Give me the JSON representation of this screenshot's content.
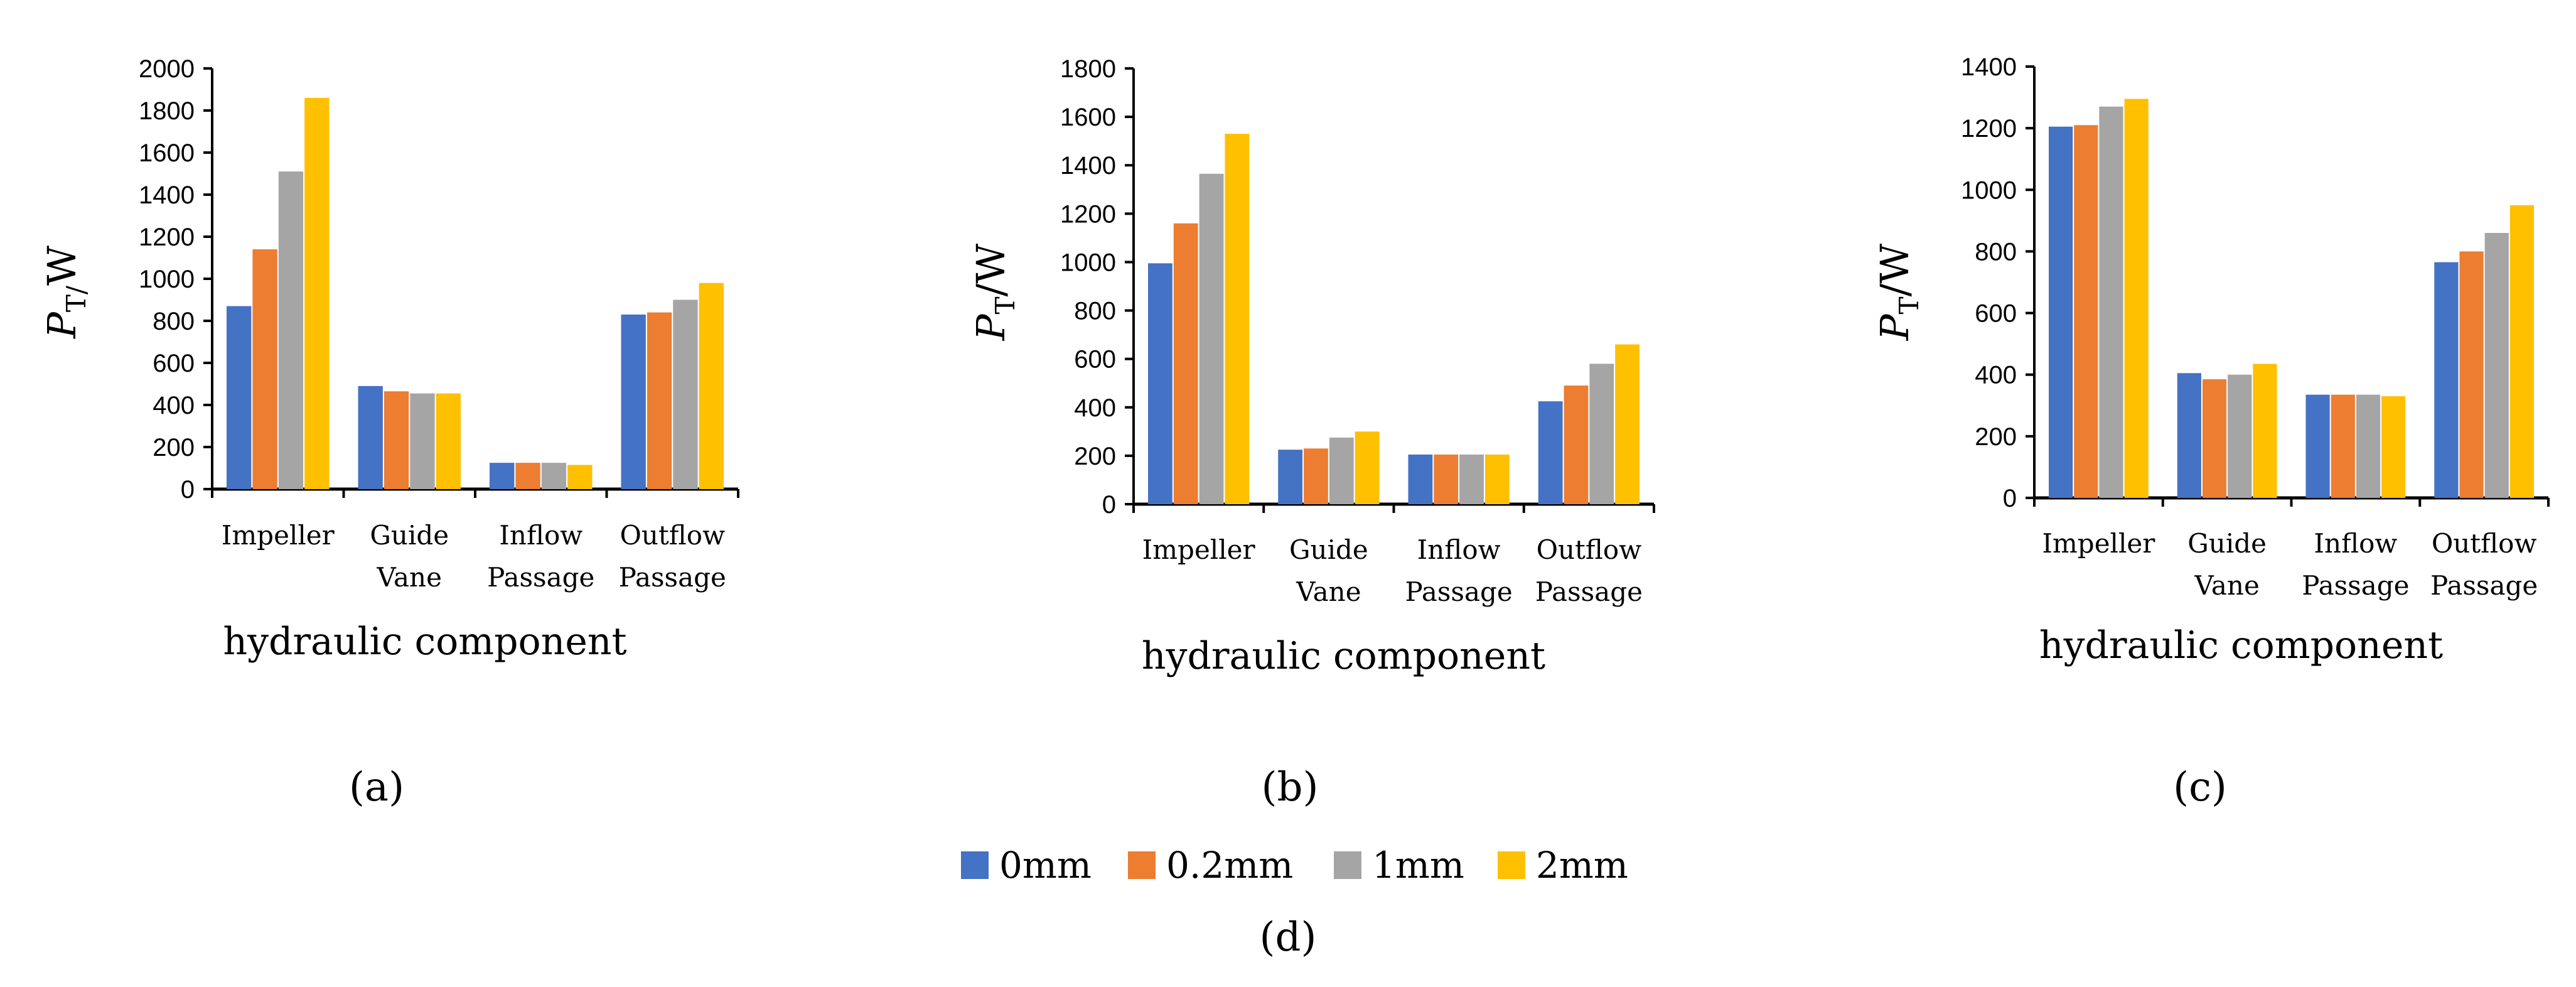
{
  "colors": {
    "series": [
      "#4472C4",
      "#ED7D31",
      "#A5A5A5",
      "#FFC000"
    ],
    "axis": "#000000"
  },
  "legend": {
    "items": [
      "0mm",
      "0.2mm",
      "1mm",
      "2mm"
    ],
    "panel_label": "(d)"
  },
  "chart_data": [
    {
      "type": "bar",
      "panel_label": "(a)",
      "ylabel": "P",
      "ylabel_sub": "T/",
      "ylabel_unit": "W",
      "xlabel": "hydraulic component",
      "ylim": [
        0,
        2000
      ],
      "yticks": [
        0,
        200,
        400,
        600,
        800,
        1000,
        1200,
        1400,
        1600,
        1800,
        2000
      ],
      "categories": [
        [
          "Impeller"
        ],
        [
          "Guide",
          "Vane"
        ],
        [
          "Inflow",
          "Passage"
        ],
        [
          "Outflow",
          "Passage"
        ]
      ],
      "series": [
        {
          "name": "0mm",
          "values": [
            870,
            490,
            125,
            830
          ]
        },
        {
          "name": "0.2mm",
          "values": [
            1140,
            465,
            125,
            840
          ]
        },
        {
          "name": "1mm",
          "values": [
            1510,
            455,
            125,
            900
          ]
        },
        {
          "name": "2mm",
          "values": [
            1860,
            455,
            115,
            980
          ]
        }
      ]
    },
    {
      "type": "bar",
      "panel_label": "(b)",
      "ylabel": "P",
      "ylabel_sub": "T",
      "ylabel_unit": "/W",
      "xlabel": "hydraulic component",
      "ylim": [
        0,
        1800
      ],
      "yticks": [
        0,
        200,
        400,
        600,
        800,
        1000,
        1200,
        1400,
        1600,
        1800
      ],
      "categories": [
        [
          "Impeller"
        ],
        [
          "Guide",
          "Vane"
        ],
        [
          "Inflow",
          "Passage"
        ],
        [
          "Outflow",
          "Passage"
        ]
      ],
      "series": [
        {
          "name": "0mm",
          "values": [
            995,
            225,
            205,
            425
          ]
        },
        {
          "name": "0.2mm",
          "values": [
            1160,
            230,
            205,
            490
          ]
        },
        {
          "name": "1mm",
          "values": [
            1365,
            275,
            205,
            580
          ]
        },
        {
          "name": "2mm",
          "values": [
            1530,
            300,
            205,
            660
          ]
        }
      ]
    },
    {
      "type": "bar",
      "panel_label": "(c)",
      "ylabel": "P",
      "ylabel_sub": "T",
      "ylabel_unit": "/W",
      "xlabel": "hydraulic component",
      "ylim": [
        0,
        1400
      ],
      "yticks": [
        0,
        200,
        400,
        600,
        800,
        1000,
        1200,
        1400
      ],
      "categories": [
        [
          "Impeller"
        ],
        [
          "Guide",
          "Vane"
        ],
        [
          "Inflow",
          "Passage"
        ],
        [
          "Outflow",
          "Passage"
        ]
      ],
      "series": [
        {
          "name": "0mm",
          "values": [
            1205,
            405,
            335,
            765
          ]
        },
        {
          "name": "0.2mm",
          "values": [
            1210,
            385,
            335,
            800
          ]
        },
        {
          "name": "1mm",
          "values": [
            1270,
            400,
            335,
            860
          ]
        },
        {
          "name": "2mm",
          "values": [
            1295,
            435,
            330,
            950
          ]
        }
      ]
    }
  ]
}
